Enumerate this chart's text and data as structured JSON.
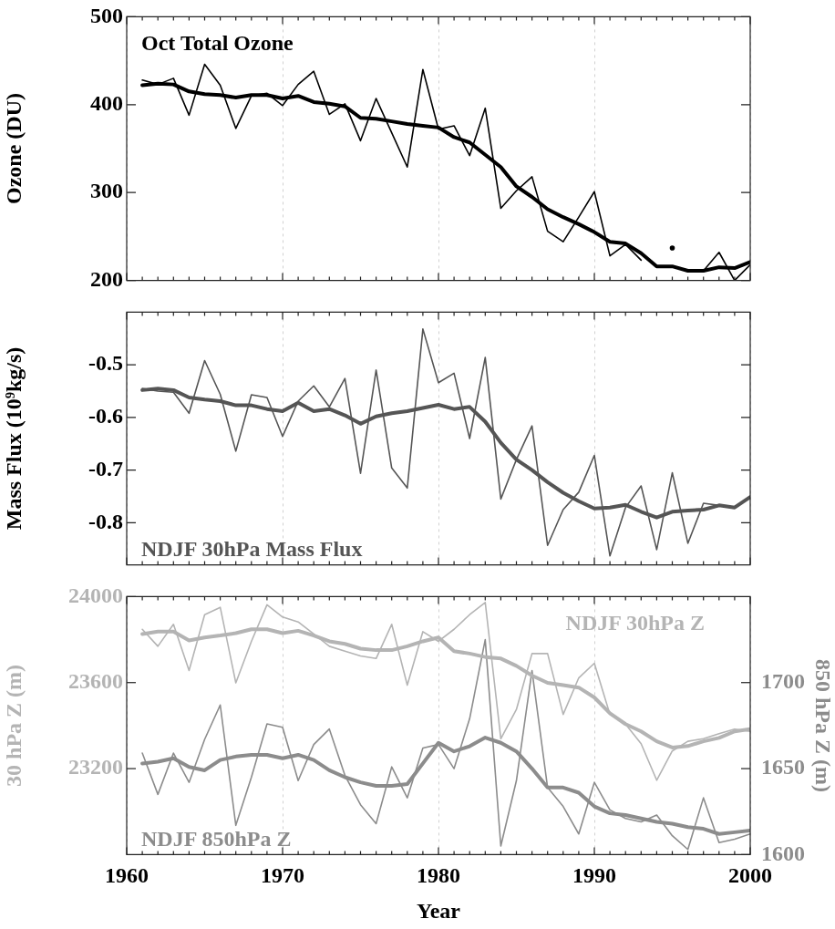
{
  "chart_data": [
    {
      "type": "line",
      "x": [
        1961,
        1962,
        1963,
        1964,
        1965,
        1966,
        1967,
        1968,
        1969,
        1970,
        1971,
        1972,
        1973,
        1974,
        1975,
        1976,
        1977,
        1978,
        1979,
        1980,
        1981,
        1982,
        1983,
        1984,
        1985,
        1986,
        1987,
        1988,
        1989,
        1990,
        1991,
        1992,
        1993,
        1994,
        1995,
        1996,
        1997,
        1998,
        1999,
        2000
      ],
      "ylabel": "Ozone (DU)",
      "xlim": [
        1960,
        2000
      ],
      "xticks": [
        1960,
        1970,
        1980,
        1990,
        2000
      ],
      "ylim": [
        200,
        500
      ],
      "yticks": [
        200,
        300,
        400,
        500
      ],
      "grid": "x",
      "tick_labels": "y",
      "series": [
        {
          "name": "Oct Total Ozone",
          "color": "#000000",
          "values": [
            428,
            423,
            430,
            388,
            446,
            422,
            373,
            410,
            413,
            399,
            423,
            438,
            389,
            401,
            359,
            407,
            368,
            329,
            440,
            372,
            376,
            342,
            396,
            282,
            302,
            318,
            256,
            244,
            272,
            301,
            228,
            241,
            223,
            null,
            237,
            null,
            211,
            232,
            200,
            218
          ]
        },
        {
          "color": "#000000",
          "values": [
            422,
            424,
            423,
            415,
            412,
            411,
            408,
            411,
            411,
            407,
            410,
            403,
            401,
            398,
            385,
            384,
            381,
            378,
            376,
            374,
            363,
            357,
            343,
            329,
            307,
            295,
            281,
            272,
            264,
            255,
            244,
            242,
            231,
            216,
            216,
            211,
            211,
            215,
            214,
            221
          ]
        }
      ]
    },
    {
      "type": "line",
      "x": [
        1961,
        1962,
        1963,
        1964,
        1965,
        1966,
        1967,
        1968,
        1969,
        1970,
        1971,
        1972,
        1973,
        1974,
        1975,
        1976,
        1977,
        1978,
        1979,
        1980,
        1981,
        1982,
        1983,
        1984,
        1985,
        1986,
        1987,
        1988,
        1989,
        1990,
        1991,
        1992,
        1993,
        1994,
        1995,
        1996,
        1997,
        1998,
        1999,
        2000
      ],
      "ylabel": "Mass Flux (10⁹kg/s)",
      "xlim": [
        1960,
        2000
      ],
      "xticks": [
        1960,
        1970,
        1980,
        1990,
        2000
      ],
      "ylim": [
        -0.88,
        -0.4
      ],
      "yticks": [
        -0.8,
        -0.7,
        -0.6,
        -0.5
      ],
      "grid": "x",
      "tick_labels": "y",
      "series": [
        {
          "name": "NDJF 30hPa Mass Flux",
          "color": "#555555",
          "values": [
            -0.545,
            -0.55,
            -0.552,
            -0.592,
            -0.492,
            -0.556,
            -0.664,
            -0.557,
            -0.562,
            -0.636,
            -0.569,
            -0.54,
            -0.58,
            -0.526,
            -0.706,
            -0.51,
            -0.696,
            -0.734,
            -0.432,
            -0.534,
            -0.516,
            -0.64,
            -0.486,
            -0.755,
            -0.68,
            -0.616,
            -0.843,
            -0.775,
            -0.742,
            -0.672,
            -0.863,
            -0.771,
            -0.73,
            -0.851,
            -0.705,
            -0.839,
            -0.763,
            -0.767,
            -0.771,
            -0.751
          ]
        },
        {
          "color": "#555555",
          "values": [
            -0.548,
            -0.545,
            -0.548,
            -0.562,
            -0.566,
            -0.569,
            -0.577,
            -0.577,
            -0.584,
            -0.588,
            -0.572,
            -0.588,
            -0.584,
            -0.596,
            -0.612,
            -0.598,
            -0.592,
            -0.588,
            -0.582,
            -0.576,
            -0.584,
            -0.58,
            -0.608,
            -0.648,
            -0.68,
            -0.7,
            -0.723,
            -0.743,
            -0.759,
            -0.773,
            -0.771,
            -0.766,
            -0.779,
            -0.79,
            -0.779,
            -0.777,
            -0.775,
            -0.767,
            -0.771,
            -0.751
          ]
        }
      ]
    },
    {
      "type": "line",
      "x": [
        1961,
        1962,
        1963,
        1964,
        1965,
        1966,
        1967,
        1968,
        1969,
        1970,
        1971,
        1972,
        1973,
        1974,
        1975,
        1976,
        1977,
        1978,
        1979,
        1980,
        1981,
        1982,
        1983,
        1984,
        1985,
        1986,
        1987,
        1988,
        1989,
        1990,
        1991,
        1992,
        1993,
        1994,
        1995,
        1996,
        1997,
        1998,
        1999,
        2000
      ],
      "xlabel": "Year",
      "ylabel": "30 hPa Z (m)",
      "y2label": "850 hPa Z (m)",
      "xlim": [
        1960,
        2000
      ],
      "xticks": [
        1960,
        1970,
        1980,
        1990,
        2000
      ],
      "ylim": [
        22800,
        24000
      ],
      "yticks": [
        23200,
        23600,
        24000
      ],
      "y2lim": [
        1600,
        1750
      ],
      "y2ticks": [
        1600,
        1650,
        1700
      ],
      "grid": "x",
      "series": [
        {
          "name": "NDJF 30hPa Z",
          "color": "#b4b4b4",
          "values": [
            23848,
            23769,
            23871,
            23656,
            23916,
            23950,
            23599,
            23792,
            23962,
            23905,
            23882,
            23826,
            23769,
            23746,
            23724,
            23712,
            23871,
            23588,
            23837,
            23792,
            23848,
            23916,
            23973,
            23339,
            23475,
            23735,
            23735,
            23452,
            23622,
            23690,
            23452,
            23407,
            23316,
            23146,
            23282,
            23327,
            23339,
            23362,
            23384,
            23373
          ]
        },
        {
          "color": "#b4b4b4",
          "values": [
            23826,
            23837,
            23837,
            23796,
            23810,
            23819,
            23830,
            23848,
            23848,
            23830,
            23841,
            23819,
            23792,
            23780,
            23758,
            23751,
            23751,
            23769,
            23792,
            23810,
            23746,
            23735,
            23719,
            23712,
            23678,
            23633,
            23599,
            23588,
            23577,
            23531,
            23457,
            23407,
            23373,
            23327,
            23298,
            23305,
            23327,
            23343,
            23373,
            23384
          ]
        },
        {
          "name": "NDJF 850hPa Z",
          "color": "#8c8c8c",
          "axis": "y2",
          "values": [
            1659,
            1635,
            1659,
            1642,
            1667,
            1687,
            1617,
            1645,
            1676,
            1674,
            1643,
            1664,
            1673,
            1646,
            1629,
            1618,
            1651,
            1633,
            1662,
            1664,
            1650,
            1679,
            1725,
            1605,
            1643,
            1707,
            1639,
            1628,
            1612,
            1642,
            1626,
            1621,
            1619,
            1623,
            1611,
            1603,
            1633,
            1607,
            1609,
            1612
          ]
        },
        {
          "color": "#8c8c8c",
          "axis": "y2",
          "values": [
            1653,
            1654,
            1656,
            1651,
            1649,
            1655,
            1657,
            1658,
            1658,
            1656,
            1658,
            1655,
            1649,
            1645,
            1642,
            1640,
            1640,
            1641,
            1653,
            1665,
            1660,
            1663,
            1668,
            1665,
            1660,
            1650,
            1639,
            1639,
            1636,
            1628,
            1624,
            1623,
            1621,
            1619,
            1618,
            1616,
            1615,
            1612,
            1613,
            1614
          ]
        }
      ]
    }
  ]
}
